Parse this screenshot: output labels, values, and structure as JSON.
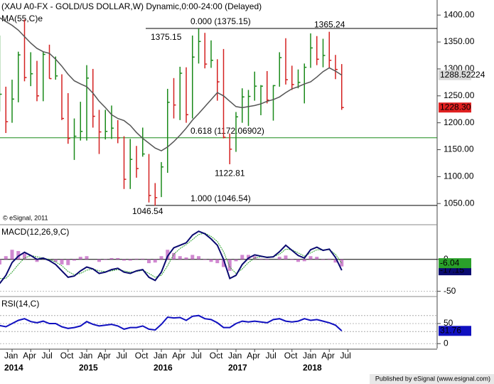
{
  "header": {
    "title": "(XAU A0-FX - GOLD/US DOLLAR,W) Dynamic,0:00-24:00 (Delayed)",
    "copyright": "© eSignal, 2011",
    "footer": "Published by eSignal (www.esignal.com)"
  },
  "chart_data": [
    {
      "type": "ohlc",
      "x": [
        -2,
        -1,
        0,
        1,
        2,
        3,
        4,
        5,
        6,
        7,
        8,
        9,
        10,
        11,
        12,
        13,
        14,
        15,
        16,
        17,
        18,
        19,
        20,
        21,
        22,
        23,
        24,
        25,
        26,
        27,
        28,
        29,
        30,
        31,
        32,
        33,
        34,
        35,
        36,
        37,
        38,
        39,
        40,
        41,
        42,
        43,
        44,
        45,
        46,
        47,
        48,
        49,
        50,
        51,
        52,
        53
      ],
      "high": [
        1362,
        1267,
        1280,
        1332,
        1392,
        1331,
        1315,
        1332,
        1345,
        1323,
        1290,
        1255,
        1208,
        1239,
        1307,
        1300,
        1224,
        1224,
        1232,
        1205,
        1175,
        1170,
        1157,
        1191,
        1142,
        1088,
        1127,
        1263,
        1283,
        1304,
        1303,
        1362,
        1375,
        1367,
        1353,
        1318,
        1337,
        1180,
        1220,
        1264,
        1261,
        1295,
        1270,
        1296,
        1270,
        1331,
        1357,
        1306,
        1299,
        1310,
        1366,
        1361,
        1356,
        1369,
        1326,
        1309
      ],
      "low": [
        1221,
        1181,
        1200,
        1238,
        1277,
        1268,
        1240,
        1240,
        1282,
        1280,
        1205,
        1161,
        1131,
        1167,
        1167,
        1191,
        1142,
        1169,
        1170,
        1162,
        1077,
        1077,
        1098,
        1137,
        1052,
        1046,
        1062,
        1107,
        1208,
        1205,
        1200,
        1208,
        1310,
        1301,
        1302,
        1241,
        1171,
        1123,
        1146,
        1200,
        1194,
        1241,
        1214,
        1236,
        1204,
        1267,
        1271,
        1261,
        1264,
        1236,
        1302,
        1307,
        1303,
        1301,
        1281,
        1224
      ],
      "close": [
        1253,
        1202,
        1244,
        1326,
        1284,
        1291,
        1250,
        1327,
        1282,
        1287,
        1208,
        1171,
        1175,
        1184,
        1283,
        1212,
        1183,
        1184,
        1190,
        1172,
        1095,
        1132,
        1115,
        1142,
        1065,
        1061,
        1118,
        1238,
        1233,
        1292,
        1215,
        1322,
        1351,
        1309,
        1316,
        1276,
        1173,
        1151,
        1211,
        1248,
        1249,
        1268,
        1268,
        1242,
        1269,
        1321,
        1280,
        1271,
        1275,
        1303,
        1339,
        1318,
        1325,
        1316,
        1299,
        1228.3
      ],
      "last_label": "1228.30",
      "up_color": "#1a8a1a",
      "down_color": "#d42020",
      "series": [
        {
          "name": "MA(55,C)e",
          "color": "#555555",
          "values": [
            1395,
            1388,
            1381,
            1372,
            1360,
            1348,
            1338,
            1332,
            1329,
            1318,
            1305,
            1290,
            1278,
            1272,
            1267,
            1255,
            1240,
            1228,
            1215,
            1208,
            1204,
            1195,
            1182,
            1171,
            1162,
            1153,
            1148,
            1155,
            1165,
            1177,
            1190,
            1205,
            1217,
            1230,
            1243,
            1256,
            1250,
            1240,
            1230,
            1228,
            1230,
            1232,
            1235,
            1240,
            1243,
            1248,
            1256,
            1263,
            1267,
            1272,
            1276,
            1285,
            1295,
            1302,
            1296,
            1288.52224
          ]
        }
      ],
      "fib_levels": [
        {
          "label": "0.000 (1375.15)",
          "value": 1375.15,
          "color": "#000000"
        },
        {
          "label": "0.618 (1172.06902)",
          "value": 1172.06902,
          "color": "#1a8a1a"
        },
        {
          "label": "1.000 (1046.54)",
          "value": 1046.54,
          "color": "#000000"
        }
      ],
      "price_labels": [
        {
          "label": "1375.15",
          "value": 1375.15
        },
        {
          "label": "1365.24",
          "value": 1365.24
        },
        {
          "label": "1122.81",
          "value": 1122.81
        },
        {
          "label": "1046.54",
          "value": 1046.54
        }
      ],
      "ylim": [
        1012,
        1428
      ],
      "yticks": [
        {
          "value": 1050,
          "label": "1050.00"
        },
        {
          "value": 1100,
          "label": "1100.00"
        },
        {
          "value": 1150,
          "label": "1150.00"
        },
        {
          "value": 1200,
          "label": "1200.00"
        },
        {
          "value": 1250,
          "label": "1250.00"
        },
        {
          "value": 1300,
          "label": "1300.00"
        },
        {
          "value": 1350,
          "label": "1350.00"
        },
        {
          "value": 1400,
          "label": "1400.00"
        }
      ],
      "xticks": [
        {
          "value": 0,
          "label": "Jan"
        },
        {
          "value": 3,
          "label": "Apr"
        },
        {
          "value": 6,
          "label": "Jul"
        },
        {
          "value": 9,
          "label": "Oct"
        },
        {
          "value": 12,
          "label": "Jan"
        },
        {
          "value": 15,
          "label": "Apr"
        },
        {
          "value": 18,
          "label": "Jul"
        },
        {
          "value": 21,
          "label": "Oct"
        },
        {
          "value": 24,
          "label": "Jan"
        },
        {
          "value": 27,
          "label": "Apr"
        },
        {
          "value": 30,
          "label": "Jul"
        },
        {
          "value": 33,
          "label": "Oct"
        },
        {
          "value": 36,
          "label": "Jan"
        },
        {
          "value": 39,
          "label": "Apr"
        },
        {
          "value": 42,
          "label": "Jul"
        },
        {
          "value": 45,
          "label": "Oct"
        },
        {
          "value": 48,
          "label": "Jan"
        },
        {
          "value": 51,
          "label": "Apr"
        },
        {
          "value": 54,
          "label": "Jul"
        }
      ],
      "year_ticks": [
        {
          "value": 0,
          "label": "2014"
        },
        {
          "value": 12,
          "label": "2015"
        },
        {
          "value": 24,
          "label": "2016"
        },
        {
          "value": 36,
          "label": "2017"
        },
        {
          "value": 48,
          "label": "2018"
        }
      ]
    },
    {
      "type": "line",
      "title": "MACD(12,26,9,C)",
      "series": [
        {
          "color": "#0a0a70",
          "values": [
            -38,
            -25,
            -5,
            5,
            11,
            6,
            0,
            2,
            -2,
            -8,
            -18,
            -28,
            -26,
            -18,
            -12,
            -15,
            -22,
            -20,
            -16,
            -14,
            -20,
            -22,
            -18,
            -16,
            -28,
            -33,
            -20,
            5,
            18,
            22,
            26,
            38,
            44,
            40,
            32,
            22,
            0,
            -30,
            -25,
            -8,
            2,
            7,
            5,
            3,
            4,
            12,
            22,
            14,
            6,
            2,
            15,
            19,
            14,
            16,
            3,
            -17.15
          ]
        },
        {
          "color": "#2aa02a",
          "values": [
            -30,
            -30,
            -20,
            -8,
            2,
            6,
            4,
            2,
            0,
            -4,
            -10,
            -19,
            -24,
            -22,
            -17,
            -15,
            -18,
            -19,
            -18,
            -16,
            -18,
            -20,
            -19,
            -17,
            -22,
            -28,
            -25,
            -10,
            8,
            17,
            23,
            31,
            39,
            41,
            36,
            28,
            12,
            -12,
            -22,
            -15,
            -5,
            2,
            4,
            4,
            4,
            8,
            16,
            15,
            10,
            5,
            10,
            15,
            15,
            15,
            8,
            -6.04
          ]
        }
      ],
      "histogram": {
        "color": "#c060c0",
        "values": [
          -8,
          5,
          15,
          13,
          9,
          0,
          -4,
          0,
          -2,
          -4,
          -8,
          -9,
          -2,
          4,
          5,
          0,
          -4,
          -1,
          2,
          2,
          -2,
          -2,
          1,
          1,
          -6,
          -5,
          5,
          15,
          10,
          5,
          3,
          7,
          5,
          -1,
          -4,
          -6,
          -12,
          -18,
          -3,
          7,
          7,
          5,
          1,
          -1,
          0,
          4,
          6,
          -1,
          -4,
          -3,
          5,
          4,
          -1,
          1,
          -5,
          -11.11
        ]
      },
      "ylim": [
        -56,
        52
      ],
      "yticks": [
        0,
        -50
      ]
    },
    {
      "type": "line",
      "title": "RSI(14,C)",
      "series": [
        {
          "color": "#1010c0",
          "values": [
            45,
            42,
            50,
            58,
            62,
            55,
            52,
            56,
            50,
            50,
            42,
            38,
            40,
            44,
            55,
            48,
            44,
            46,
            48,
            44,
            36,
            40,
            40,
            44,
            36,
            34,
            48,
            66,
            64,
            65,
            58,
            68,
            70,
            62,
            60,
            52,
            40,
            40,
            50,
            56,
            54,
            56,
            54,
            52,
            60,
            62,
            56,
            54,
            56,
            62,
            58,
            60,
            56,
            52,
            46,
            31.76
          ]
        }
      ],
      "levels": [
        70,
        30
      ],
      "ylim": [
        -12,
        112
      ],
      "yticks": [
        50,
        0
      ]
    }
  ]
}
